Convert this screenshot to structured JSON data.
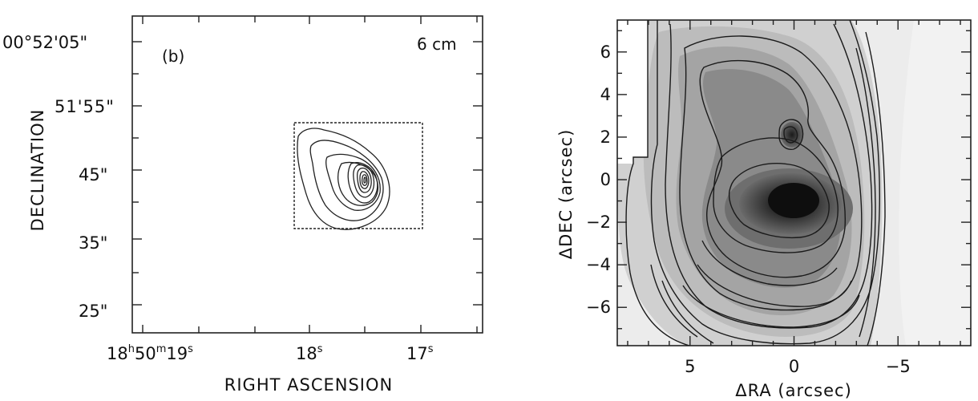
{
  "chart_data": [
    {
      "type": "contour",
      "panel_label": "(b)",
      "wavelength_label": "6 cm",
      "xlabel": "RIGHT ASCENSION",
      "ylabel": "DECLINATION",
      "x_ticks": [
        {
          "h": "18",
          "hsup": "h",
          "m": "50",
          "msup": "m",
          "s": "19",
          "ssup": "s"
        },
        {
          "s": "18",
          "ssup": "s"
        },
        {
          "s": "17",
          "ssup": "s"
        }
      ],
      "y_ticks": [
        "00°52'05\"",
        "51'55\"",
        "45\"",
        "35\"",
        "25\""
      ],
      "contour_peak": {
        "ra_s": 17.56,
        "dec_s": 45.8
      },
      "box_region": {
        "ra_s": [
          17.78,
          17.08
        ],
        "dec_s": [
          37.3,
          53.0
        ]
      }
    },
    {
      "type": "heatmap",
      "xlabel": "ΔRA (arcsec)",
      "ylabel": "ΔDEC (arcsec)",
      "xlim": [
        8.5,
        -8.5
      ],
      "ylim": [
        -7.8,
        7.5
      ],
      "x_ticks": [
        5,
        0,
        -5
      ],
      "x_tick_labels": [
        "5",
        "0",
        "−5"
      ],
      "y_ticks": [
        6,
        4,
        2,
        0,
        -2,
        -4,
        -6
      ],
      "y_tick_labels": [
        "6",
        "4",
        "2",
        "0",
        "−2",
        "−4",
        "−6"
      ],
      "peaks": [
        {
          "x": 0.2,
          "y": -0.4,
          "label": "main peak"
        },
        {
          "x": 0.1,
          "y": 2.1,
          "label": "secondary peak"
        }
      ]
    }
  ]
}
